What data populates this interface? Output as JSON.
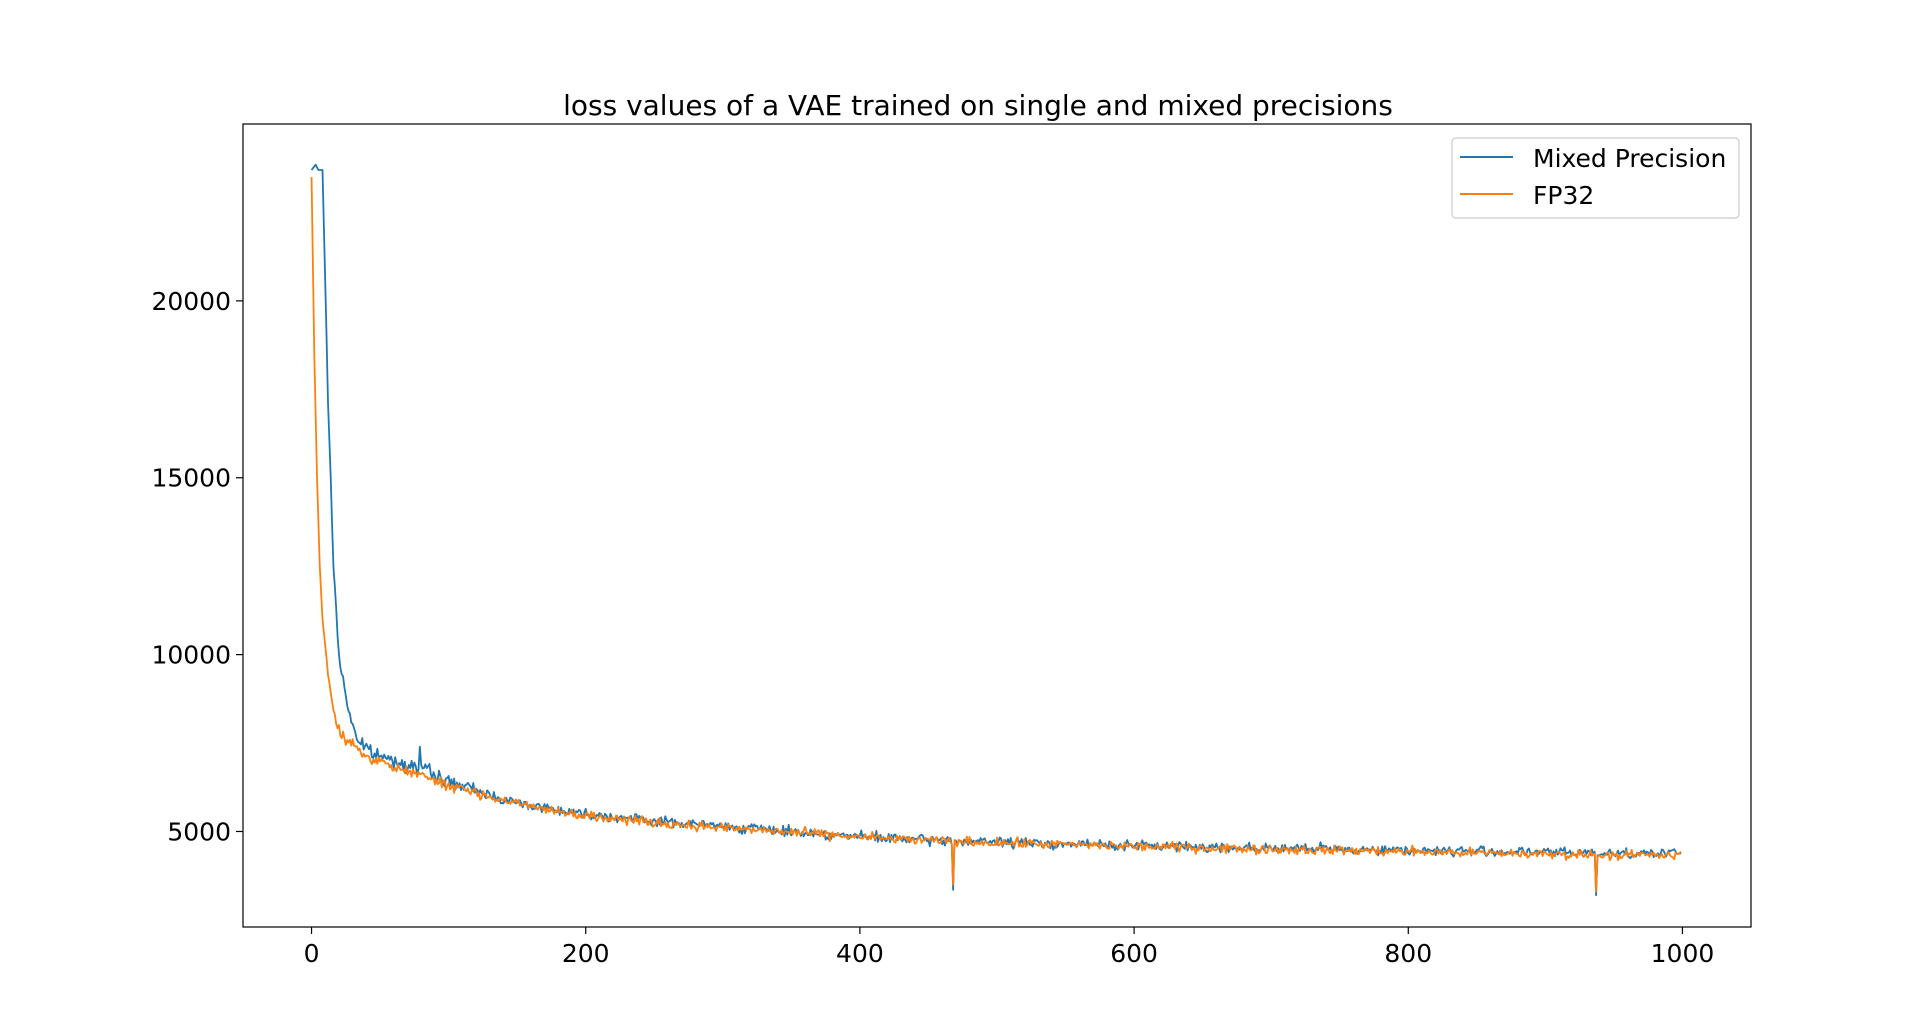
{
  "chart_data": {
    "type": "line",
    "title": "loss values of a VAE trained on single and mixed precisions",
    "xlabel": "",
    "ylabel": "",
    "xlim": [
      -50,
      1050
    ],
    "ylim": [
      2300,
      25000
    ],
    "x_ticks": [
      0,
      200,
      400,
      600,
      800,
      1000
    ],
    "x_tick_labels": [
      "0",
      "200",
      "400",
      "600",
      "800",
      "1000"
    ],
    "y_ticks": [
      5000,
      10000,
      15000,
      20000
    ],
    "y_tick_labels": [
      "5000",
      "10000",
      "15000",
      "20000"
    ],
    "grid": false,
    "legend_position": "top-right",
    "x_range": [
      0,
      999
    ],
    "series": [
      {
        "name": "Mixed Precision",
        "color": "#1f77b4",
        "anchors": [
          [
            0,
            23700
          ],
          [
            3,
            23850
          ],
          [
            5,
            23700
          ],
          [
            8,
            23700
          ],
          [
            12,
            17300
          ],
          [
            16,
            12500
          ],
          [
            20,
            10000
          ],
          [
            25,
            8800
          ],
          [
            30,
            8000
          ],
          [
            35,
            7500
          ],
          [
            45,
            7200
          ],
          [
            60,
            7000
          ],
          [
            80,
            6800
          ],
          [
            100,
            6400
          ],
          [
            150,
            5800
          ],
          [
            200,
            5500
          ],
          [
            250,
            5300
          ],
          [
            300,
            5150
          ],
          [
            350,
            5000
          ],
          [
            400,
            4850
          ],
          [
            450,
            4750
          ],
          [
            500,
            4700
          ],
          [
            600,
            4600
          ],
          [
            700,
            4530
          ],
          [
            800,
            4470
          ],
          [
            900,
            4410
          ],
          [
            999,
            4380
          ]
        ],
        "spikes": [
          [
            79,
            7400
          ],
          [
            468,
            3350
          ],
          [
            937,
            3200
          ]
        ],
        "noise": 140
      },
      {
        "name": "FP32",
        "color": "#ff7f0e",
        "anchors": [
          [
            0,
            23500
          ],
          [
            2,
            18500
          ],
          [
            4,
            15000
          ],
          [
            6,
            12500
          ],
          [
            8,
            11000
          ],
          [
            12,
            9500
          ],
          [
            16,
            8300
          ],
          [
            20,
            7800
          ],
          [
            30,
            7400
          ],
          [
            40,
            7100
          ],
          [
            60,
            6800
          ],
          [
            80,
            6600
          ],
          [
            100,
            6300
          ],
          [
            150,
            5800
          ],
          [
            200,
            5450
          ],
          [
            250,
            5250
          ],
          [
            300,
            5100
          ],
          [
            350,
            4980
          ],
          [
            400,
            4840
          ],
          [
            450,
            4740
          ],
          [
            500,
            4680
          ],
          [
            600,
            4580
          ],
          [
            700,
            4500
          ],
          [
            800,
            4430
          ],
          [
            900,
            4360
          ],
          [
            999,
            4320
          ]
        ],
        "spikes": [
          [
            468,
            3500
          ],
          [
            937,
            3300
          ]
        ],
        "noise": 130
      }
    ]
  }
}
